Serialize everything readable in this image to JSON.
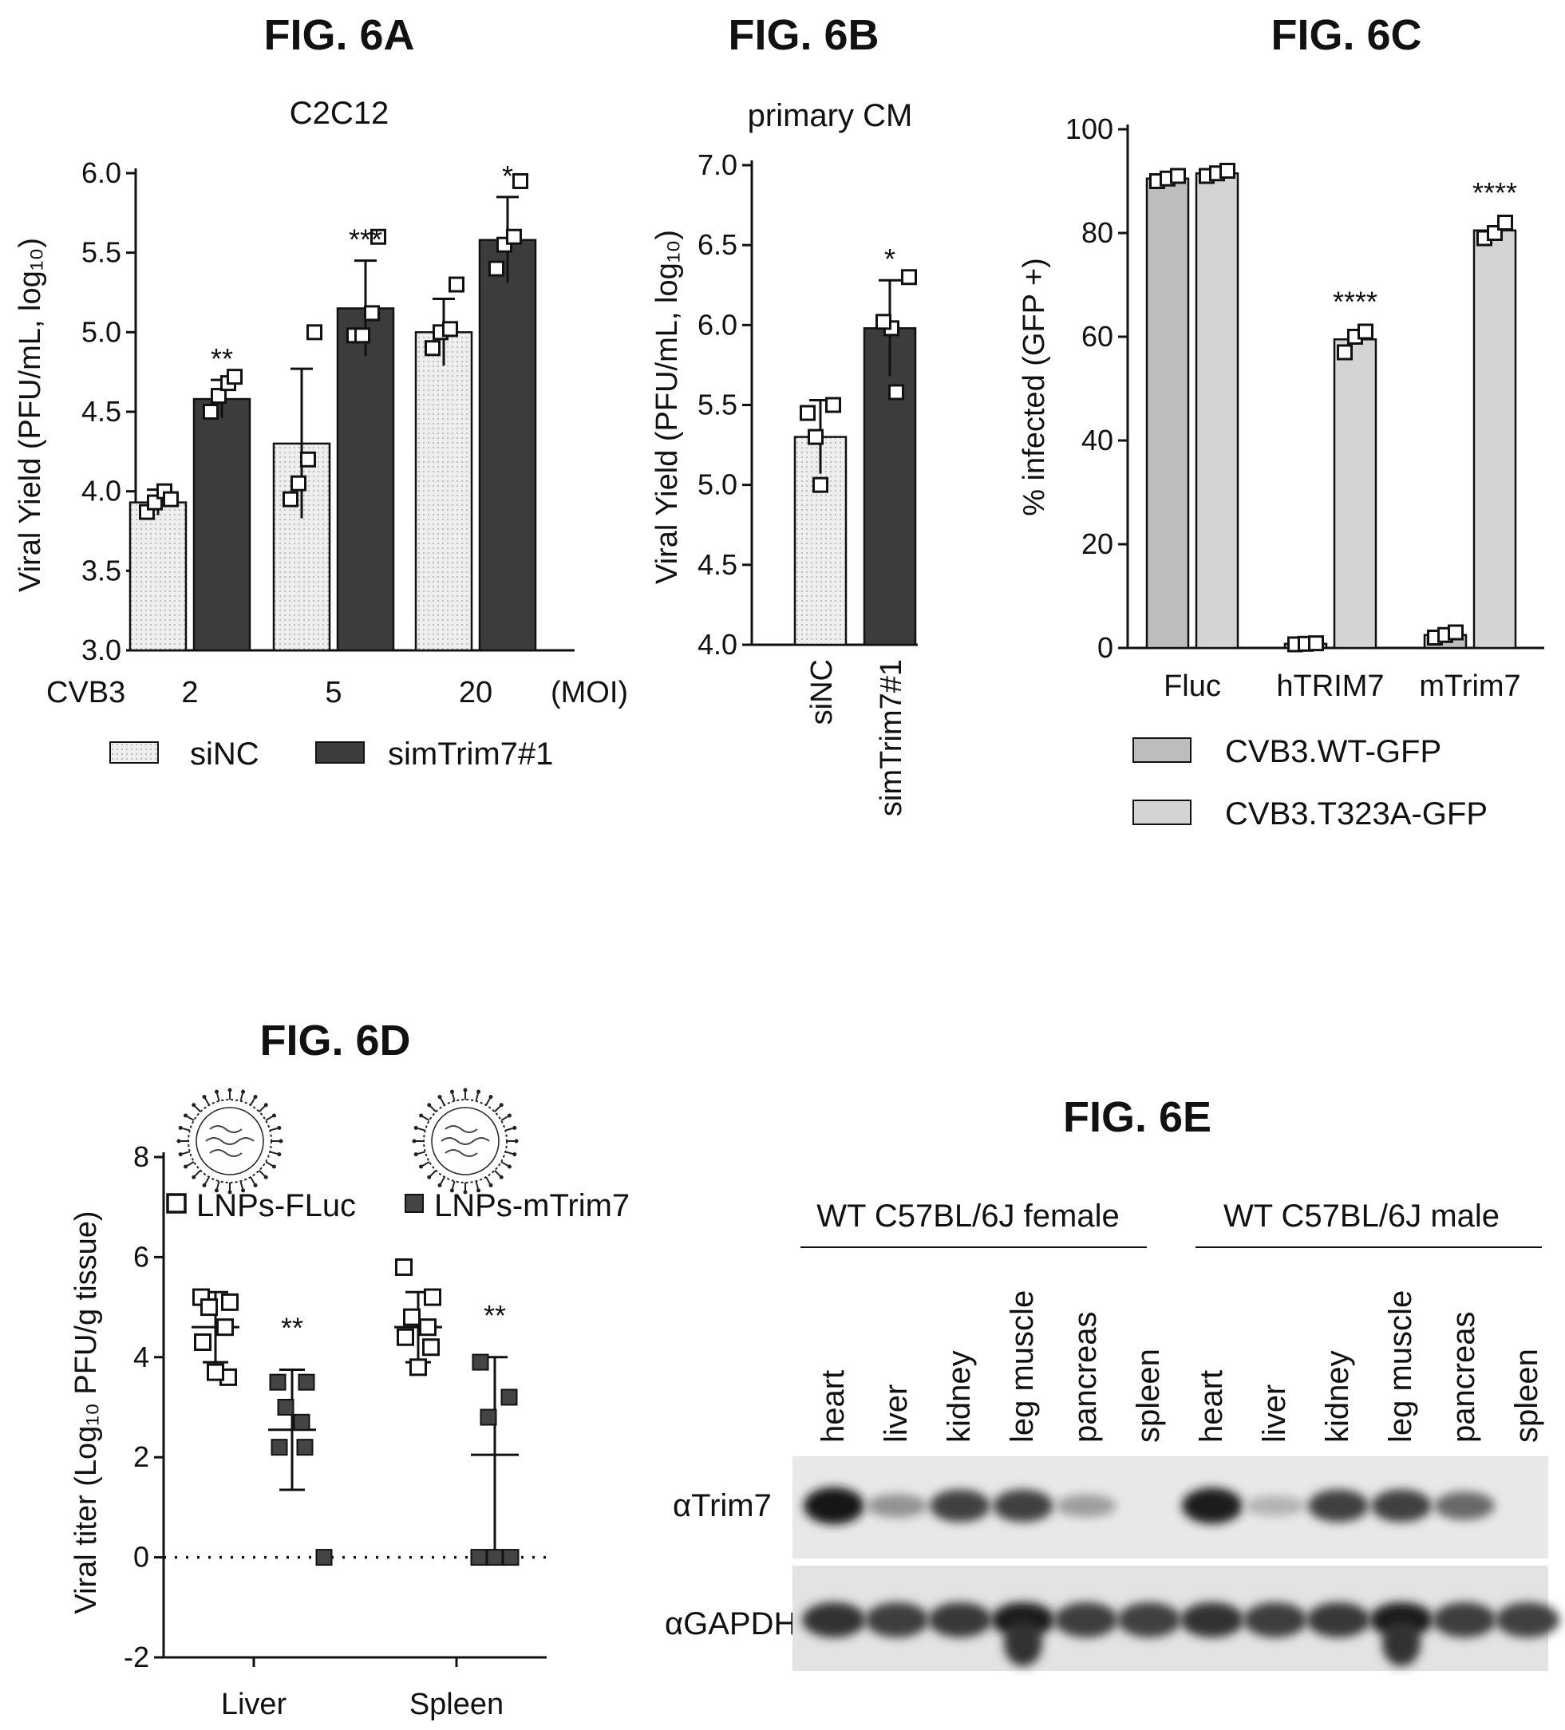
{
  "figures": {
    "A": {
      "label": "FIG. 6A"
    },
    "B": {
      "label": "FIG. 6B"
    },
    "C": {
      "label": "FIG. 6C"
    },
    "D": {
      "label": "FIG. 6D"
    },
    "E": {
      "label": "FIG. 6E"
    }
  },
  "colors": {
    "light_bar": "#ececec",
    "dark_bar": "#3c3c3c",
    "gray_bar": "#bdbdbd",
    "lighter_bar": "#d4d4d4",
    "ink": "#111111"
  },
  "chart_data": [
    {
      "id": "6A",
      "type": "bar",
      "title": "C2C12",
      "ylabel": "Viral Yield (PFU/mL, log₁₀)",
      "ylim": [
        3.0,
        6.0
      ],
      "yticks": [
        "3.0",
        "3.5",
        "4.0",
        "4.5",
        "5.0",
        "5.5",
        "6.0"
      ],
      "xlabel_prefix": "CVB3",
      "xlabel_suffix": "(MOI)",
      "categories": [
        "2",
        "5",
        "20"
      ],
      "series": [
        {
          "name": "siNC",
          "values": [
            3.93,
            4.3,
            5.0
          ],
          "errors": [
            0.08,
            0.47,
            0.21
          ],
          "points": [
            [
              3.87,
              3.93,
              4.0,
              3.95
            ],
            [
              3.95,
              4.05,
              4.2,
              5.0
            ],
            [
              4.9,
              5.0,
              5.02,
              5.3
            ]
          ]
        },
        {
          "name": "simTrim7#1",
          "values": [
            4.58,
            5.15,
            5.58
          ],
          "errors": [
            0.12,
            0.3,
            0.27
          ],
          "points": [
            [
              4.5,
              4.6,
              4.68,
              4.72
            ],
            [
              4.98,
              4.98,
              5.12,
              5.6
            ],
            [
              5.4,
              5.55,
              5.6,
              5.95
            ]
          ]
        }
      ],
      "significance": [
        "**",
        "***",
        "*"
      ]
    },
    {
      "id": "6B",
      "type": "bar",
      "title": "primary CM",
      "ylabel": "Viral Yield (PFU/mL, log₁₀)",
      "ylim": [
        4.0,
        7.0
      ],
      "yticks": [
        "4.0",
        "4.5",
        "5.0",
        "5.5",
        "6.0",
        "6.5",
        "7.0"
      ],
      "categories": [
        "siNC",
        "simTrim7#1"
      ],
      "values": [
        5.3,
        5.98
      ],
      "errors": [
        0.23,
        0.3
      ],
      "points": [
        [
          5.0,
          5.3,
          5.45,
          5.5
        ],
        [
          5.58,
          5.98,
          6.02,
          6.3
        ]
      ],
      "significance": [
        "",
        "*"
      ]
    },
    {
      "id": "6C",
      "type": "bar",
      "ylabel": "% infected (GFP +)",
      "ylim": [
        0,
        100
      ],
      "yticks": [
        "0",
        "20",
        "40",
        "60",
        "80",
        "100"
      ],
      "categories": [
        "Fluc",
        "hTRIM7",
        "mTrim7"
      ],
      "series": [
        {
          "name": "CVB3.WT-GFP",
          "values": [
            90.5,
            0.8,
            2.5
          ],
          "points": [
            [
              90,
              90.5,
              91
            ],
            [
              0.7,
              0.8,
              0.9
            ],
            [
              2,
              2.5,
              3
            ]
          ]
        },
        {
          "name": "CVB3.T323A-GFP",
          "values": [
            91.5,
            59.5,
            80.5
          ],
          "points": [
            [
              91,
              91.5,
              92
            ],
            [
              57,
              60,
              61
            ],
            [
              79,
              80,
              82
            ]
          ]
        }
      ],
      "significance": [
        "",
        "****",
        "****"
      ]
    },
    {
      "id": "6D",
      "type": "scatter",
      "ylabel": "Viral titer (Log₁₀ PFU/g tissue)",
      "ylim": [
        -2,
        8
      ],
      "yticks": [
        "-2",
        "0",
        "2",
        "4",
        "6",
        "8"
      ],
      "categories": [
        "Liver",
        "Spleen"
      ],
      "series": [
        {
          "name": "LNPs-FLuc",
          "means": [
            4.6,
            4.6
          ],
          "sd": [
            0.7,
            0.7
          ],
          "points": [
            [
              5.2,
              5.1,
              5.0,
              4.6,
              4.3,
              3.6,
              3.7
            ],
            [
              5.8,
              5.2,
              4.8,
              4.6,
              4.4,
              4.2,
              3.8
            ]
          ]
        },
        {
          "name": "LNPs-mTrim7",
          "means": [
            2.55,
            2.05
          ],
          "sd": [
            1.2,
            1.95
          ],
          "points": [
            [
              3.5,
              3.5,
              3.0,
              2.7,
              2.2,
              2.2,
              0
            ],
            [
              3.9,
              3.2,
              2.8,
              0,
              0,
              0
            ]
          ]
        }
      ],
      "significance": [
        "**",
        "**"
      ]
    }
  ],
  "blot": {
    "groups": [
      "WT C57BL/6J female",
      "WT C57BL/6J male"
    ],
    "lanes": [
      "heart",
      "liver",
      "kidney",
      "leg muscle",
      "pancreas",
      "spleen",
      "heart",
      "liver",
      "kidney",
      "leg muscle",
      "pancreas",
      "spleen"
    ],
    "rows": [
      "αTrim7",
      "αGAPDH"
    ],
    "trim7_intensity": [
      0.95,
      0.35,
      0.75,
      0.75,
      0.3,
      0.05,
      0.9,
      0.2,
      0.75,
      0.75,
      0.55,
      0.05
    ],
    "gapdh_intensity": [
      0.85,
      0.8,
      0.82,
      0.95,
      0.8,
      0.78,
      0.85,
      0.8,
      0.82,
      0.95,
      0.8,
      0.78
    ]
  }
}
